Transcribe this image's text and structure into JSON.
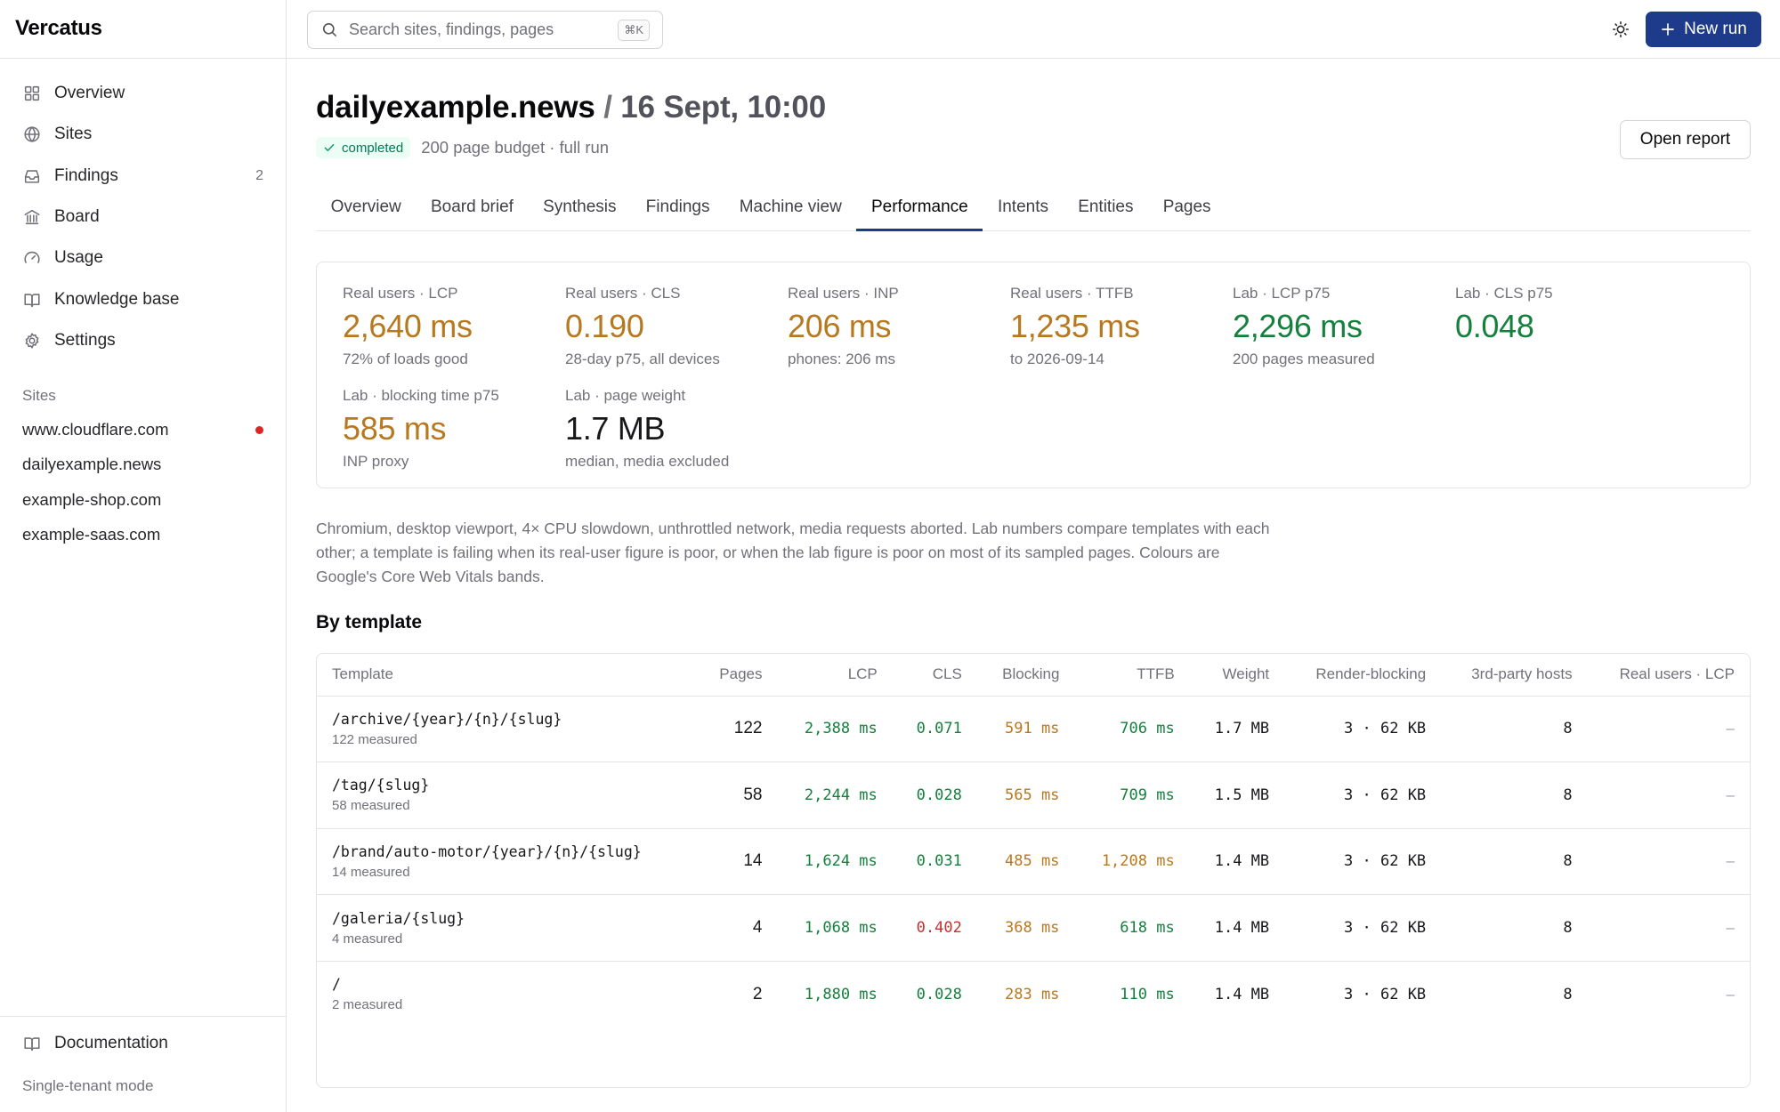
{
  "app": {
    "brand": "Vercatus"
  },
  "nav": [
    {
      "label": "Overview",
      "icon": "grid-icon",
      "count": ""
    },
    {
      "label": "Sites",
      "icon": "globe-icon",
      "count": ""
    },
    {
      "label": "Findings",
      "icon": "inbox-icon",
      "count": "2"
    },
    {
      "label": "Board",
      "icon": "building-icon",
      "count": ""
    },
    {
      "label": "Usage",
      "icon": "gauge-icon",
      "count": ""
    },
    {
      "label": "Knowledge base",
      "icon": "book-icon",
      "count": ""
    },
    {
      "label": "Settings",
      "icon": "gear-icon",
      "count": ""
    }
  ],
  "sites": {
    "heading": "Sites",
    "items": [
      {
        "label": "www.cloudflare.com",
        "alert": true
      },
      {
        "label": "dailyexample.news",
        "alert": false
      },
      {
        "label": "example-shop.com",
        "alert": false
      },
      {
        "label": "example-saas.com",
        "alert": false
      }
    ]
  },
  "sidebar_footer": {
    "documentation": "Documentation",
    "mode": "Single-tenant mode"
  },
  "topbar": {
    "search_placeholder": "Search sites, findings, pages",
    "search_shortcut": "⌘K",
    "new_run": "New run"
  },
  "header": {
    "site": "dailyexample.news",
    "separator": "/",
    "run": "16 Sept, 10:00",
    "status": "completed",
    "meta": "200 page budget · full run",
    "open_report": "Open report"
  },
  "tabs": [
    "Overview",
    "Board brief",
    "Synthesis",
    "Findings",
    "Machine view",
    "Performance",
    "Intents",
    "Entities",
    "Pages"
  ],
  "active_tab": "Performance",
  "colors": {
    "good": "#15803d",
    "needs_improvement": "#b7791f",
    "poor": "#c53030",
    "neutral": "#18181b",
    "accent": "#1e3a8a"
  },
  "metrics": [
    {
      "label": "Real users · LCP",
      "value": "2,640 ms",
      "sub": "72% of loads good",
      "band": "needs_improvement"
    },
    {
      "label": "Real users · CLS",
      "value": "0.190",
      "sub": "28-day p75, all devices",
      "band": "needs_improvement"
    },
    {
      "label": "Real users · INP",
      "value": "206 ms",
      "sub": "phones: 206 ms",
      "band": "needs_improvement"
    },
    {
      "label": "Real users · TTFB",
      "value": "1,235 ms",
      "sub": "to 2026-09-14",
      "band": "needs_improvement"
    },
    {
      "label": "Lab · LCP p75",
      "value": "2,296 ms",
      "sub": "200 pages measured",
      "band": "good"
    },
    {
      "label": "Lab · CLS p75",
      "value": "0.048",
      "sub": "",
      "band": "good"
    },
    {
      "label": "Lab · blocking time p75",
      "value": "585 ms",
      "sub": "INP proxy",
      "band": "needs_improvement"
    },
    {
      "label": "Lab · page weight",
      "value": "1.7 MB",
      "sub": "median, media excluded",
      "band": "neutral"
    }
  ],
  "description": "Chromium, desktop viewport, 4× CPU slowdown, unthrottled network, media requests aborted. Lab numbers compare templates with each other; a template is failing when its real-user figure is poor, or when the lab figure is poor on most of its sampled pages. Colours are Google's Core Web Vitals bands.",
  "by_template": {
    "title": "By template",
    "columns": [
      "Template",
      "Pages",
      "LCP",
      "CLS",
      "Blocking",
      "TTFB",
      "Weight",
      "Render-blocking",
      "3rd-party hosts",
      "Real users · LCP"
    ],
    "rows": [
      {
        "template": "/archive/{year}/{n}/{slug}",
        "measured": "122 measured",
        "pages": "122",
        "lcp": "2,388 ms",
        "lcp_band": "good",
        "cls": "0.071",
        "cls_band": "good",
        "blocking": "591 ms",
        "blocking_band": "needs_improvement",
        "ttfb": "706 ms",
        "ttfb_band": "good",
        "weight": "1.7 MB",
        "render_blocking": "3 · 62 KB",
        "third_party": "8",
        "real_lcp": "–"
      },
      {
        "template": "/tag/{slug}",
        "measured": "58 measured",
        "pages": "58",
        "lcp": "2,244 ms",
        "lcp_band": "good",
        "cls": "0.028",
        "cls_band": "good",
        "blocking": "565 ms",
        "blocking_band": "needs_improvement",
        "ttfb": "709 ms",
        "ttfb_band": "good",
        "weight": "1.5 MB",
        "render_blocking": "3 · 62 KB",
        "third_party": "8",
        "real_lcp": "–"
      },
      {
        "template": "/brand/auto-motor/{year}/{n}/{slug}",
        "measured": "14 measured",
        "pages": "14",
        "lcp": "1,624 ms",
        "lcp_band": "good",
        "cls": "0.031",
        "cls_band": "good",
        "blocking": "485 ms",
        "blocking_band": "needs_improvement",
        "ttfb": "1,208 ms",
        "ttfb_band": "needs_improvement",
        "weight": "1.4 MB",
        "render_blocking": "3 · 62 KB",
        "third_party": "8",
        "real_lcp": "–"
      },
      {
        "template": "/galeria/{slug}",
        "measured": "4 measured",
        "pages": "4",
        "lcp": "1,068 ms",
        "lcp_band": "good",
        "cls": "0.402",
        "cls_band": "poor",
        "blocking": "368 ms",
        "blocking_band": "needs_improvement",
        "ttfb": "618 ms",
        "ttfb_band": "good",
        "weight": "1.4 MB",
        "render_blocking": "3 · 62 KB",
        "third_party": "8",
        "real_lcp": "–"
      },
      {
        "template": "/",
        "measured": "2 measured",
        "pages": "2",
        "lcp": "1,880 ms",
        "lcp_band": "good",
        "cls": "0.028",
        "cls_band": "good",
        "blocking": "283 ms",
        "blocking_band": "needs_improvement",
        "ttfb": "110 ms",
        "ttfb_band": "good",
        "weight": "1.4 MB",
        "render_blocking": "3 · 62 KB",
        "third_party": "8",
        "real_lcp": "–"
      }
    ]
  }
}
